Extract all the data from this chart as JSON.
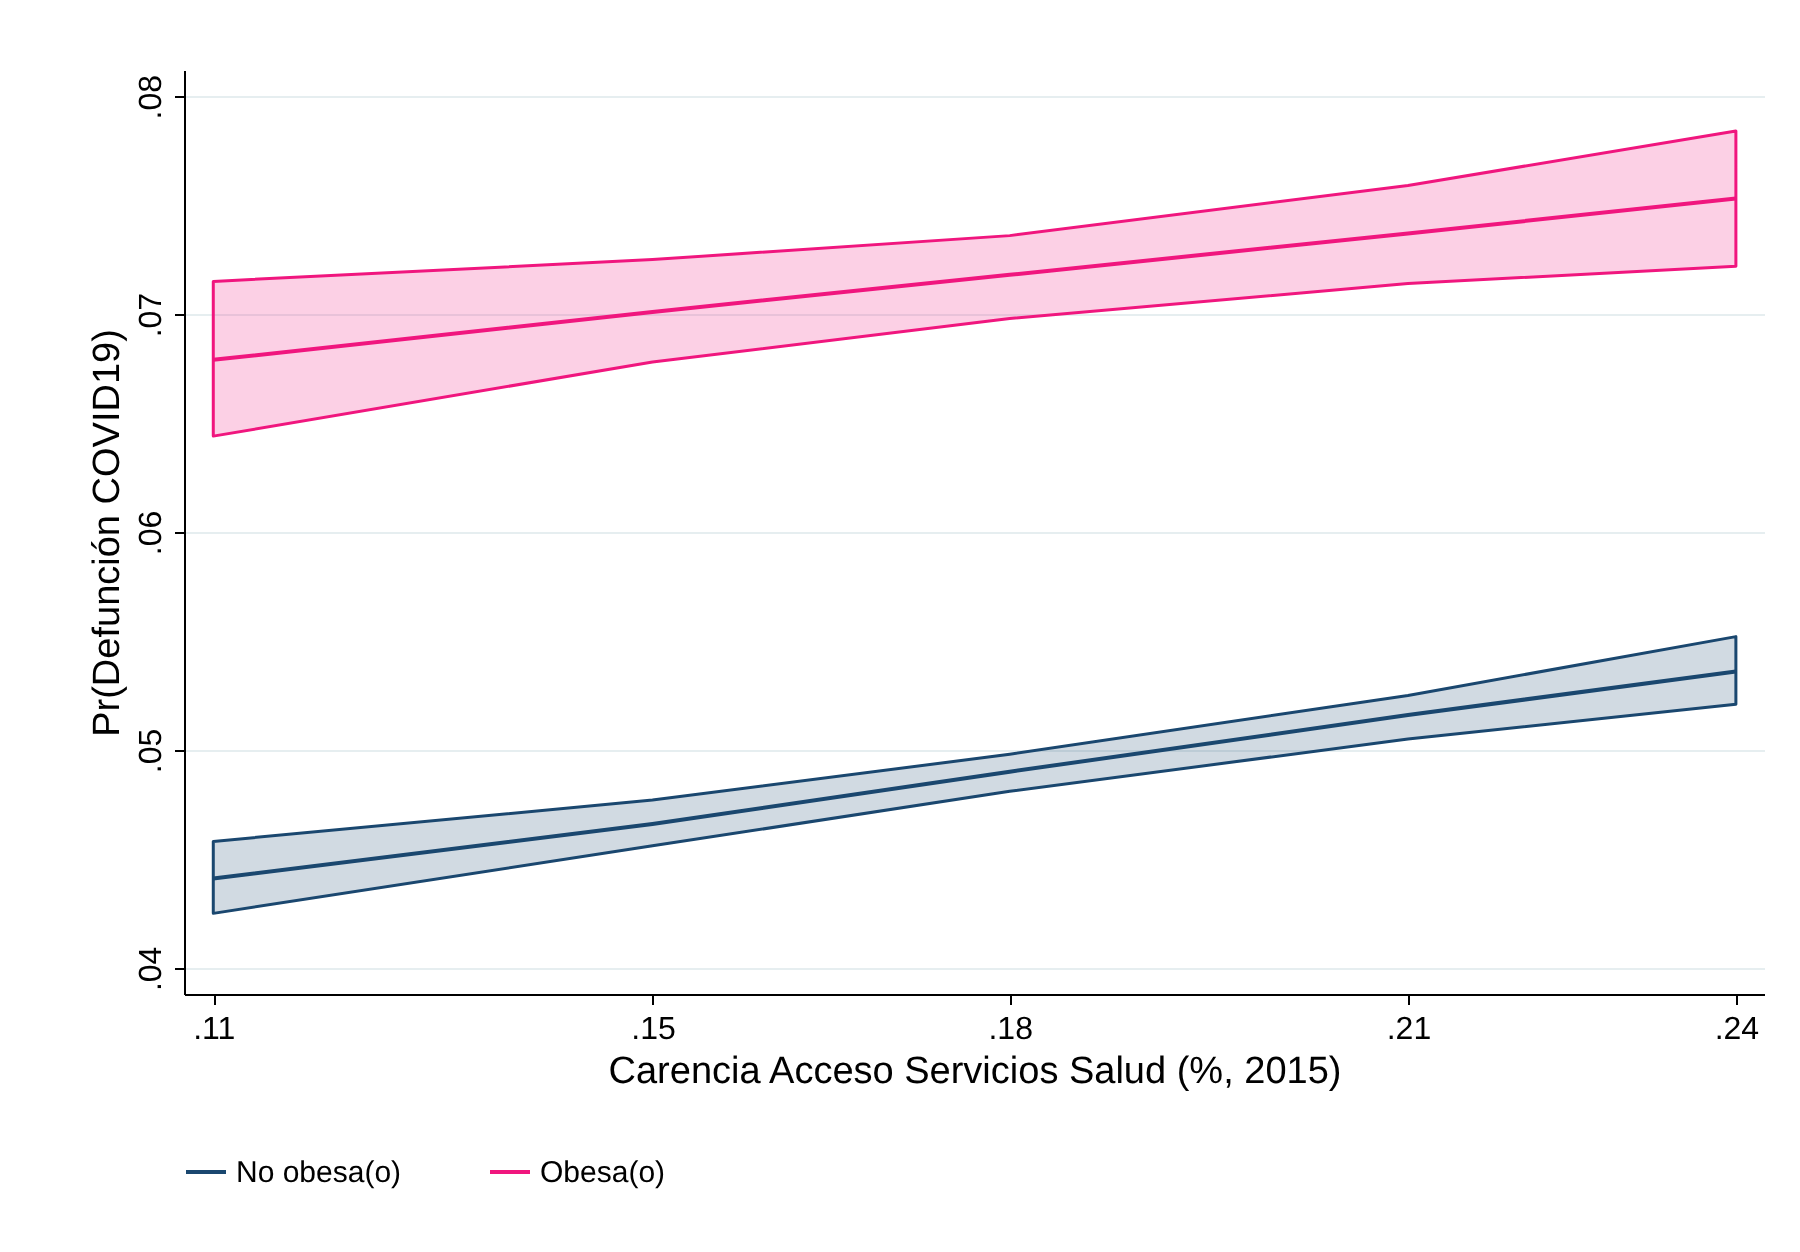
{
  "chart_data": {
    "type": "line",
    "xlabel": "Carencia Acceso Servicios Salud (%, 2015)",
    "ylabel": "Pr(Defunción COVID19)",
    "x": [
      0.11,
      0.1475,
      0.178,
      0.212,
      0.24
    ],
    "xlim": [
      0.1075,
      0.2424
    ],
    "xticks": [
      {
        "value": 0.11,
        "label": ".11"
      },
      {
        "value": 0.1475,
        "label": ".15"
      },
      {
        "value": 0.178,
        "label": ".18"
      },
      {
        "value": 0.212,
        "label": ".21"
      },
      {
        "value": 0.24,
        "label": ".24"
      }
    ],
    "ylim": [
      0.0388,
      0.0812
    ],
    "yticks": [
      {
        "value": 0.04,
        "label": ".04"
      },
      {
        "value": 0.05,
        "label": ".05"
      },
      {
        "value": 0.06,
        "label": ".06"
      },
      {
        "value": 0.07,
        "label": ".07"
      },
      {
        "value": 0.08,
        "label": ".08"
      }
    ],
    "series": [
      {
        "name": "No obesa(o)",
        "color": "#1a476f",
        "values": [
          0.0441,
          0.0466,
          0.049,
          0.0516,
          0.0536
        ],
        "lower": [
          0.0425,
          0.0456,
          0.0481,
          0.0505,
          0.0521
        ],
        "upper": [
          0.0458,
          0.0477,
          0.0498,
          0.0525,
          0.0552
        ]
      },
      {
        "name": "Obesa(o)",
        "color": "#f0167e",
        "values": [
          0.0679,
          0.0701,
          0.0718,
          0.0737,
          0.0753
        ],
        "lower": [
          0.0644,
          0.0678,
          0.0698,
          0.0714,
          0.0722
        ],
        "upper": [
          0.0715,
          0.0725,
          0.0736,
          0.0759,
          0.0784
        ]
      }
    ],
    "grid": "y",
    "legend": "bottom",
    "marker": "none",
    "line_style": "solid"
  }
}
